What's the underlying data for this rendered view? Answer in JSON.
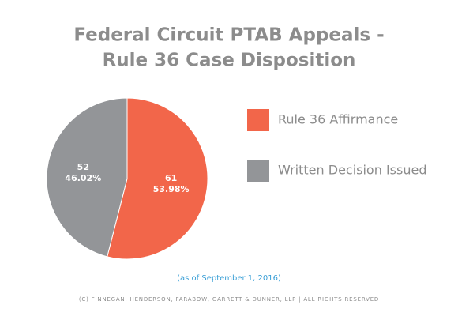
{
  "chart_data": {
    "type": "pie",
    "title": [
      "Federal Circuit PTAB Appeals -",
      "Rule 36 Case Disposition"
    ],
    "categories": [
      "Rule 36 Affirmance",
      "Written Decision Issued"
    ],
    "values": [
      61,
      52
    ],
    "percent_labels": [
      "53.98%",
      "46.02%"
    ],
    "colors": [
      "#f2664a",
      "#939598"
    ],
    "legend": "right",
    "note": "(as of September 1, 2016)",
    "footer": "(C) FINNEGAN, HENDERSON, FARABOW, GARRETT & DUNNER, LLP | ALL RIGHTS RESERVED"
  }
}
